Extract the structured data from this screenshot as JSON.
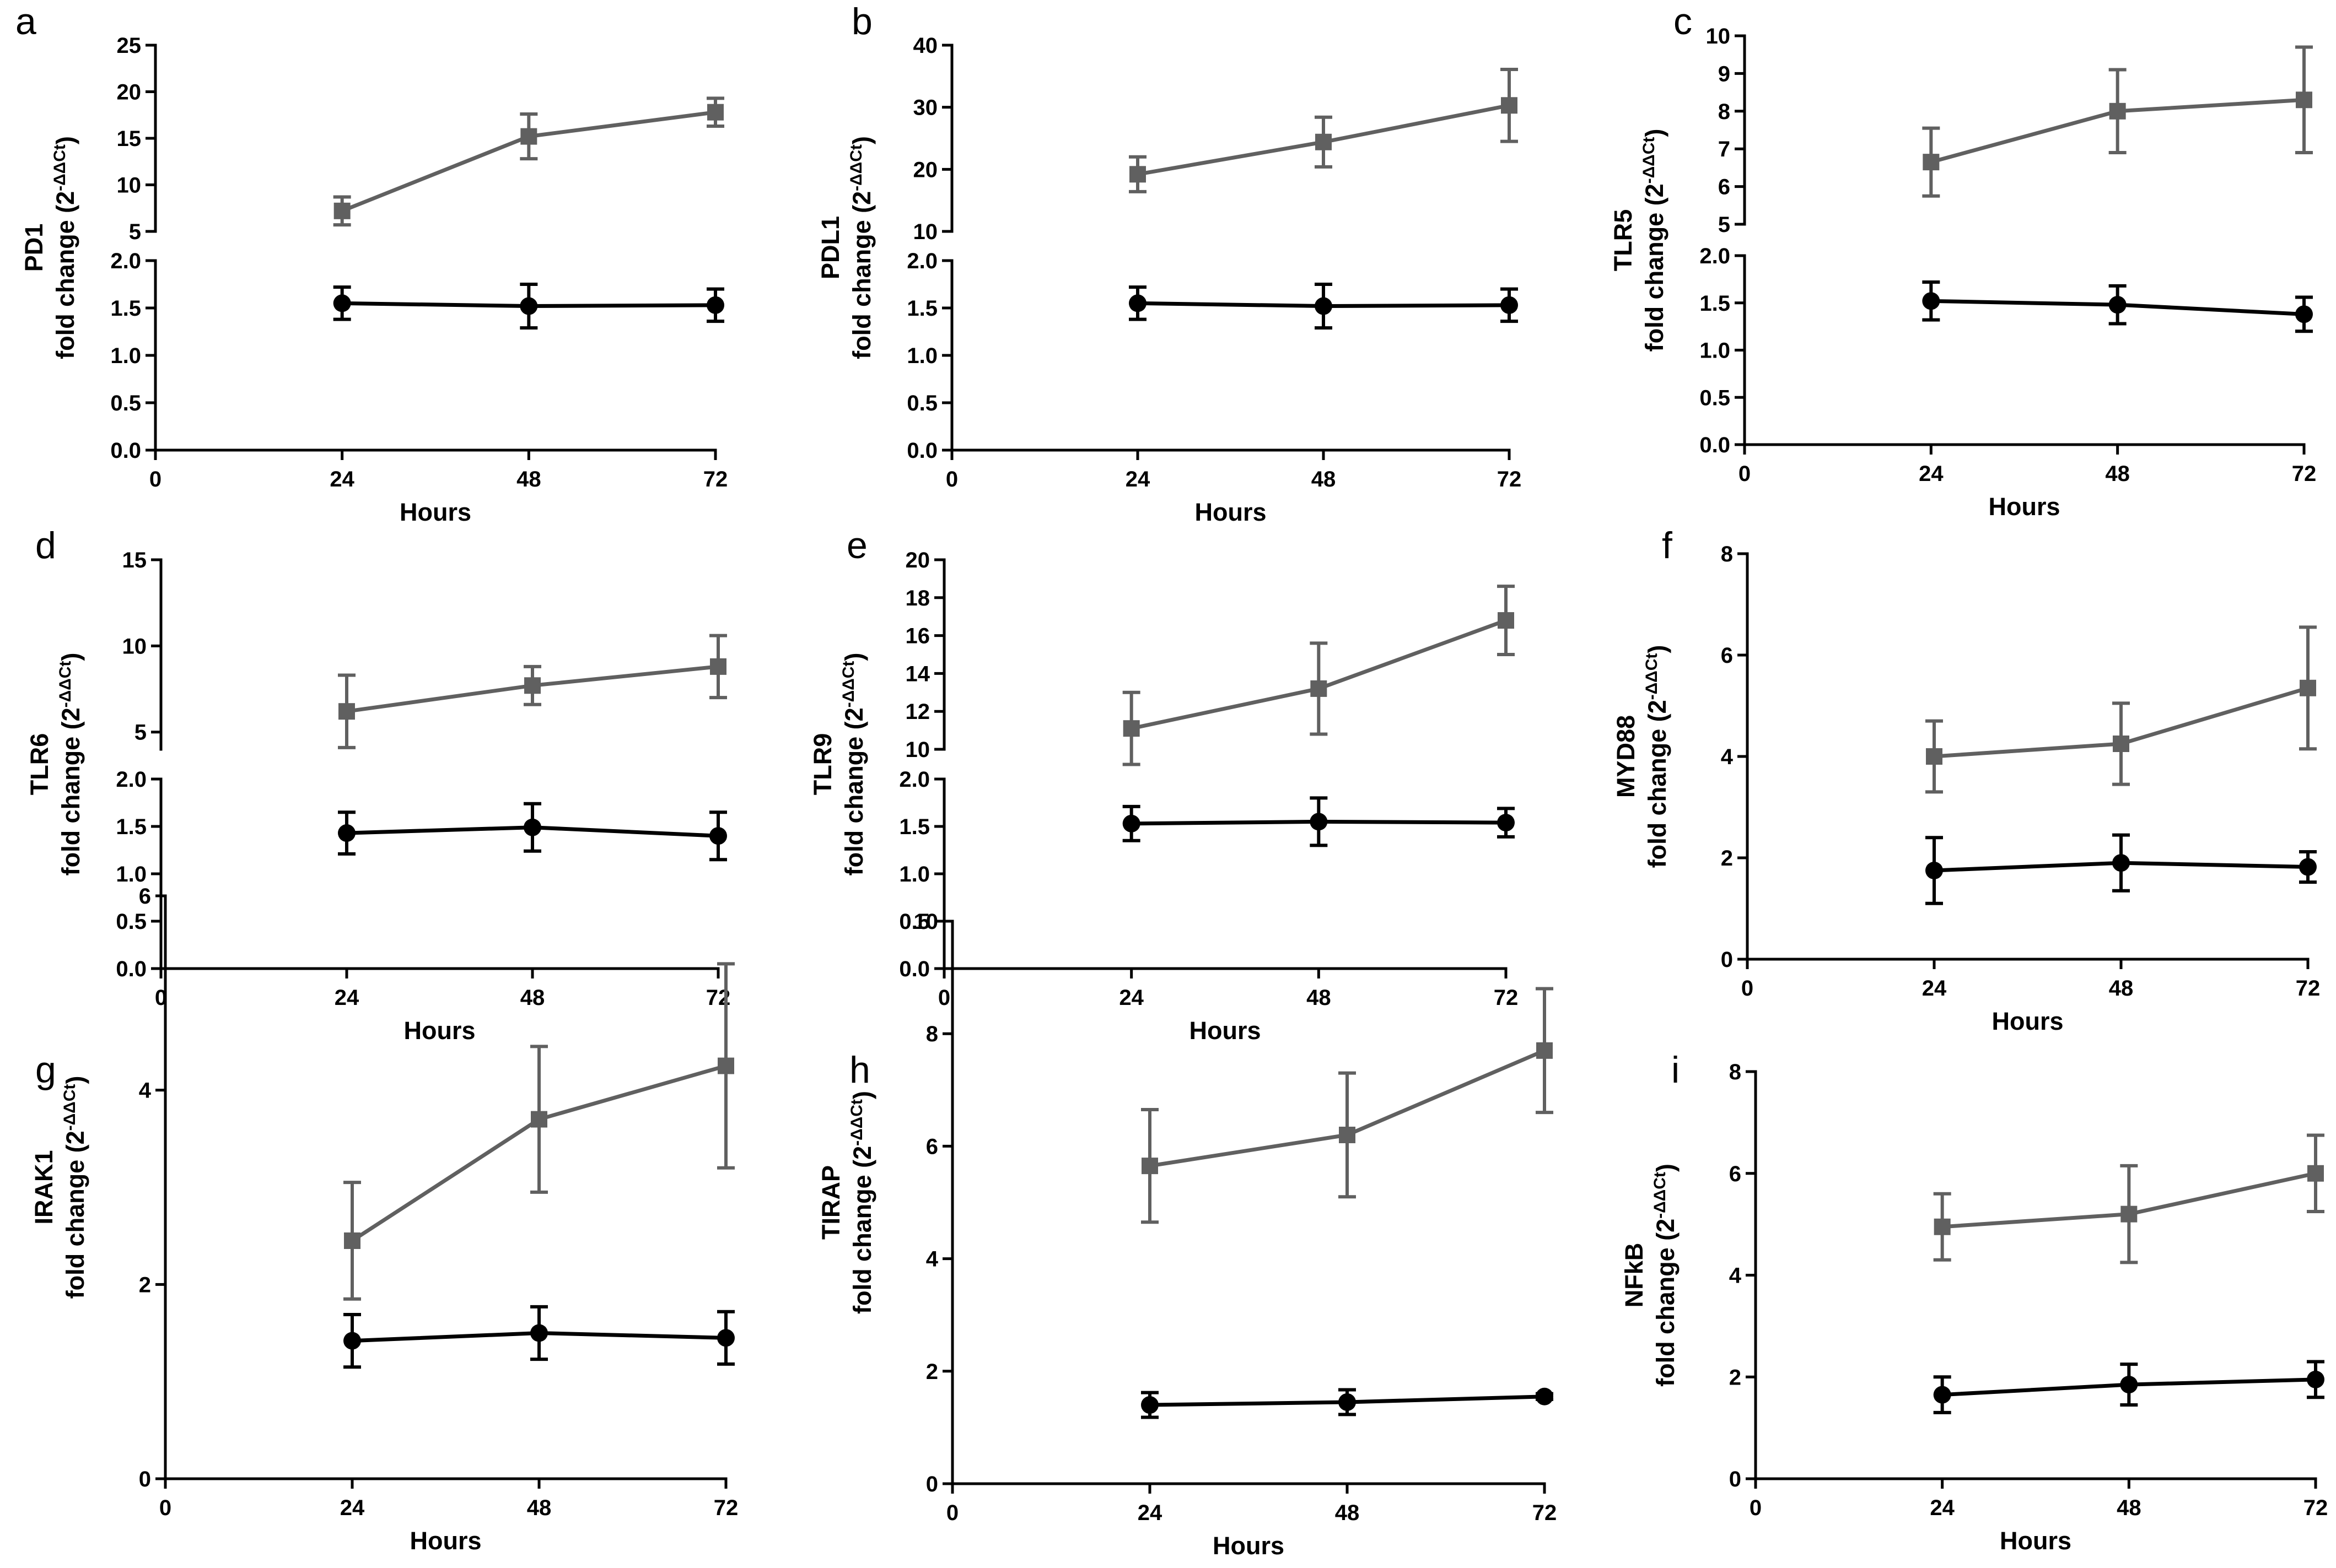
{
  "colors": {
    "treated": "#606060",
    "control": "#000000",
    "axis": "#000000"
  },
  "chart_data": [
    {
      "id": "a",
      "type": "line",
      "letter": "a",
      "gene": "PD1",
      "ylabel": "fold change",
      "ylabel_exp": "-ΔΔCt",
      "xlabel": "Hours",
      "x_ticks": [
        "0",
        "24",
        "48",
        "72"
      ],
      "xlim": [
        0,
        72
      ],
      "broken_axis": true,
      "lower": {
        "ylim": [
          0,
          2
        ],
        "ticks": [
          "0.0",
          "0.5",
          "1.0",
          "1.5",
          "2.0"
        ]
      },
      "upper": {
        "ylim": [
          5,
          25
        ],
        "ticks": [
          "5",
          "10",
          "15",
          "20",
          "25"
        ]
      },
      "series": [
        {
          "name": "treated",
          "segment": "upper",
          "x": [
            24,
            48,
            72
          ],
          "y": [
            7.2,
            15.2,
            17.8
          ],
          "err": [
            1.5,
            2.4,
            1.5
          ]
        },
        {
          "name": "control",
          "segment": "lower",
          "x": [
            24,
            48,
            72
          ],
          "y": [
            1.55,
            1.52,
            1.53
          ],
          "err": [
            0.17,
            0.23,
            0.17
          ]
        }
      ]
    },
    {
      "id": "b",
      "type": "line",
      "letter": "b",
      "gene": "PDL1",
      "ylabel": "fold change",
      "ylabel_exp": "-ΔΔCt",
      "xlabel": "Hours",
      "x_ticks": [
        "0",
        "24",
        "48",
        "72"
      ],
      "xlim": [
        0,
        72
      ],
      "broken_axis": true,
      "lower": {
        "ylim": [
          0,
          2
        ],
        "ticks": [
          "0.0",
          "0.5",
          "1.0",
          "1.5",
          "2.0"
        ]
      },
      "upper": {
        "ylim": [
          10,
          40
        ],
        "ticks": [
          "10",
          "20",
          "30",
          "40"
        ]
      },
      "series": [
        {
          "name": "treated",
          "segment": "upper",
          "x": [
            24,
            48,
            72
          ],
          "y": [
            19.2,
            24.4,
            30.3
          ],
          "err": [
            2.8,
            4.0,
            5.8
          ]
        },
        {
          "name": "control",
          "segment": "lower",
          "x": [
            24,
            48,
            72
          ],
          "y": [
            1.55,
            1.52,
            1.53
          ],
          "err": [
            0.17,
            0.23,
            0.17
          ]
        }
      ]
    },
    {
      "id": "c",
      "type": "line",
      "letter": "c",
      "gene": "TLR5",
      "ylabel": "fold change",
      "ylabel_exp": "-ΔΔCt",
      "xlabel": "Hours",
      "x_ticks": [
        "0",
        "24",
        "48",
        "72"
      ],
      "xlim": [
        0,
        72
      ],
      "broken_axis": true,
      "lower": {
        "ylim": [
          0,
          2
        ],
        "ticks": [
          "0.0",
          "0.5",
          "1.0",
          "1.5",
          "2.0"
        ]
      },
      "upper": {
        "ylim": [
          5,
          10
        ],
        "ticks": [
          "5",
          "6",
          "7",
          "8",
          "9",
          "10"
        ]
      },
      "series": [
        {
          "name": "treated",
          "segment": "upper",
          "x": [
            24,
            48,
            72
          ],
          "y": [
            6.65,
            8.0,
            8.3
          ],
          "err": [
            0.9,
            1.1,
            1.4
          ]
        },
        {
          "name": "control",
          "segment": "lower",
          "x": [
            24,
            48,
            72
          ],
          "y": [
            1.52,
            1.48,
            1.38
          ],
          "err": [
            0.2,
            0.2,
            0.18
          ]
        }
      ]
    },
    {
      "id": "d",
      "type": "line",
      "letter": "d",
      "gene": "TLR6",
      "ylabel": "fold change",
      "ylabel_exp": "-ΔΔCt",
      "xlabel": "Hours",
      "x_ticks": [
        "0",
        "24",
        "48",
        "72"
      ],
      "xlim": [
        0,
        72
      ],
      "broken_axis": true,
      "lower": {
        "ylim": [
          0,
          2
        ],
        "ticks": [
          "0.0",
          "0.5",
          "1.0",
          "1.5",
          "2.0"
        ]
      },
      "upper": {
        "ylim": [
          4,
          15
        ],
        "ticks": [
          "5",
          "10",
          "15"
        ]
      },
      "series": [
        {
          "name": "treated",
          "segment": "upper",
          "x": [
            24,
            48,
            72
          ],
          "y": [
            6.2,
            7.7,
            8.8
          ],
          "err": [
            2.1,
            1.1,
            1.8
          ]
        },
        {
          "name": "control",
          "segment": "lower",
          "x": [
            24,
            48,
            72
          ],
          "y": [
            1.43,
            1.49,
            1.4
          ],
          "err": [
            0.22,
            0.25,
            0.25
          ]
        }
      ]
    },
    {
      "id": "e",
      "type": "line",
      "letter": "e",
      "gene": "TLR9",
      "ylabel": "fold change",
      "ylabel_exp": "-ΔΔCt",
      "xlabel": "Hours",
      "x_ticks": [
        "0",
        "24",
        "48",
        "72"
      ],
      "xlim": [
        0,
        72
      ],
      "broken_axis": true,
      "lower": {
        "ylim": [
          0,
          2
        ],
        "ticks": [
          "0.0",
          "0.5",
          "1.0",
          "1.5",
          "2.0"
        ]
      },
      "upper": {
        "ylim": [
          10,
          20
        ],
        "ticks": [
          "10",
          "12",
          "14",
          "16",
          "18",
          "20"
        ]
      },
      "series": [
        {
          "name": "treated",
          "segment": "upper",
          "x": [
            24,
            48,
            72
          ],
          "y": [
            11.1,
            13.2,
            16.8
          ],
          "err": [
            1.9,
            2.4,
            1.8
          ]
        },
        {
          "name": "control",
          "segment": "lower",
          "x": [
            24,
            48,
            72
          ],
          "y": [
            1.53,
            1.55,
            1.54
          ],
          "err": [
            0.18,
            0.25,
            0.15
          ]
        }
      ]
    },
    {
      "id": "f",
      "type": "line",
      "letter": "f",
      "gene": "MYD88",
      "ylabel": "fold change",
      "ylabel_exp": "-ΔΔCt",
      "xlabel": "Hours",
      "x_ticks": [
        "0",
        "24",
        "48",
        "72"
      ],
      "xlim": [
        0,
        72
      ],
      "broken_axis": false,
      "ylim": [
        0,
        8
      ],
      "ticks": [
        "0",
        "2",
        "4",
        "6",
        "8"
      ],
      "series": [
        {
          "name": "treated",
          "x": [
            24,
            48,
            72
          ],
          "y": [
            4.0,
            4.25,
            5.35
          ],
          "err": [
            0.7,
            0.8,
            1.2
          ]
        },
        {
          "name": "control",
          "x": [
            24,
            48,
            72
          ],
          "y": [
            1.75,
            1.9,
            1.82
          ],
          "err": [
            0.65,
            0.55,
            0.3
          ]
        }
      ]
    },
    {
      "id": "g",
      "type": "line",
      "letter": "g",
      "gene": "IRAK1",
      "ylabel": "fold change",
      "ylabel_exp": "-ΔΔCt",
      "xlabel": "Hours",
      "x_ticks": [
        "0",
        "24",
        "48",
        "72"
      ],
      "xlim": [
        0,
        72
      ],
      "broken_axis": false,
      "ylim": [
        0,
        6
      ],
      "ticks": [
        "0",
        "2",
        "4",
        "6"
      ],
      "series": [
        {
          "name": "treated",
          "x": [
            24,
            48,
            72
          ],
          "y": [
            2.45,
            3.7,
            4.25
          ],
          "err": [
            0.6,
            0.75,
            1.05
          ]
        },
        {
          "name": "control",
          "x": [
            24,
            48,
            72
          ],
          "y": [
            1.42,
            1.5,
            1.45
          ],
          "err": [
            0.27,
            0.27,
            0.27
          ]
        }
      ]
    },
    {
      "id": "h",
      "type": "line",
      "letter": "h",
      "gene": "TIRAP",
      "ylabel": "fold change",
      "ylabel_exp": "-ΔΔCt",
      "xlabel": "Hours",
      "x_ticks": [
        "0",
        "24",
        "48",
        "72"
      ],
      "xlim": [
        0,
        72
      ],
      "broken_axis": false,
      "ylim": [
        0,
        10
      ],
      "ticks": [
        "0",
        "2",
        "4",
        "6",
        "8",
        "10"
      ],
      "series": [
        {
          "name": "treated",
          "x": [
            24,
            48,
            72
          ],
          "y": [
            5.65,
            6.2,
            7.7
          ],
          "err": [
            1.0,
            1.1,
            1.1
          ]
        },
        {
          "name": "control",
          "x": [
            24,
            48,
            72
          ],
          "y": [
            1.4,
            1.45,
            1.55
          ],
          "err": [
            0.22,
            0.22,
            0.05
          ]
        }
      ]
    },
    {
      "id": "i",
      "type": "line",
      "letter": "i",
      "gene": "NFkB",
      "ylabel": "fold change",
      "ylabel_exp": "-ΔΔCt",
      "xlabel": "Hours",
      "x_ticks": [
        "0",
        "24",
        "48",
        "72"
      ],
      "xlim": [
        0,
        72
      ],
      "broken_axis": false,
      "ylim": [
        0,
        8
      ],
      "ticks": [
        "0",
        "2",
        "4",
        "6",
        "8"
      ],
      "series": [
        {
          "name": "treated",
          "x": [
            24,
            48,
            72
          ],
          "y": [
            4.95,
            5.2,
            6.0
          ],
          "err": [
            0.65,
            0.95,
            0.75
          ]
        },
        {
          "name": "control",
          "x": [
            24,
            48,
            72
          ],
          "y": [
            1.65,
            1.85,
            1.95
          ],
          "err": [
            0.35,
            0.4,
            0.35
          ]
        }
      ]
    }
  ]
}
